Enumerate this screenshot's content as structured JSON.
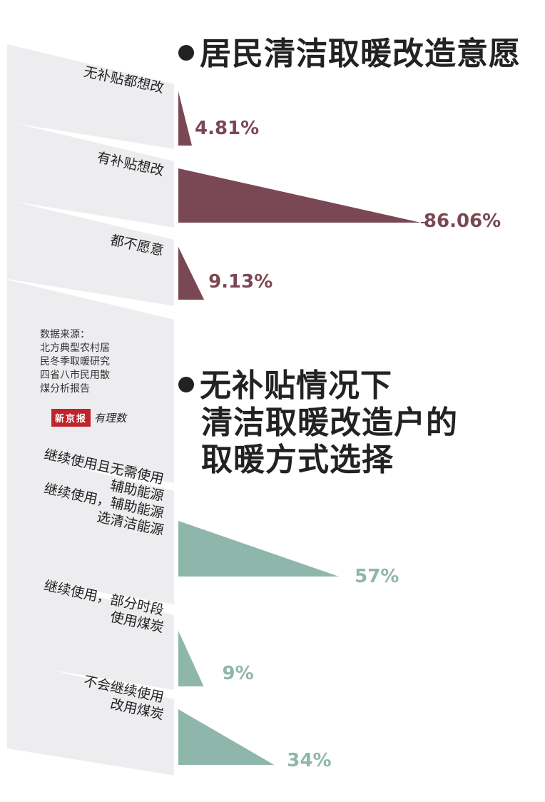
{
  "chart_data": [
    {
      "type": "bar",
      "title": "居民清洁取暖改造意愿",
      "unit": "%",
      "color": "#7a4854",
      "categories": [
        "无补贴都想改",
        "有补贴想改",
        "都不愿意"
      ],
      "values": [
        4.81,
        86.06,
        9.13
      ],
      "value_labels": [
        "4.81%",
        "86.06%",
        "9.13%"
      ]
    },
    {
      "type": "bar",
      "title": "无补贴情况下清洁取暖改造户的取暖方式选择",
      "title_lines": [
        "无补贴情况下",
        "清洁取暖改造户的",
        "取暖方式选择"
      ],
      "unit": "%",
      "color": "#8fb6aa",
      "categories": [
        "继续使用且无需使用辅助能源 继续使用，辅助能源选清洁能源",
        "继续使用，部分时段使用煤炭",
        "不会继续使用改用煤炭"
      ],
      "category_lines": [
        [
          "继续使用且无需使用",
          "辅助能源",
          "继续使用，辅助能源",
          "选清洁能源"
        ],
        [
          "继续使用，部分时段",
          "使用煤炭"
        ],
        [
          "不会继续使用",
          "改用煤炭"
        ]
      ],
      "values": [
        57,
        9,
        34
      ],
      "value_labels": [
        "57%",
        "9%",
        "34%"
      ]
    }
  ],
  "source": {
    "lines": [
      "数据来源：",
      "北方典型农村居",
      "民冬季取暖研究",
      "四省八市民用散",
      "煤分析报告"
    ]
  },
  "logo": {
    "name": "新京报",
    "script": "有理数"
  },
  "colors": {
    "band": "#ededf0",
    "title": "#222222"
  }
}
